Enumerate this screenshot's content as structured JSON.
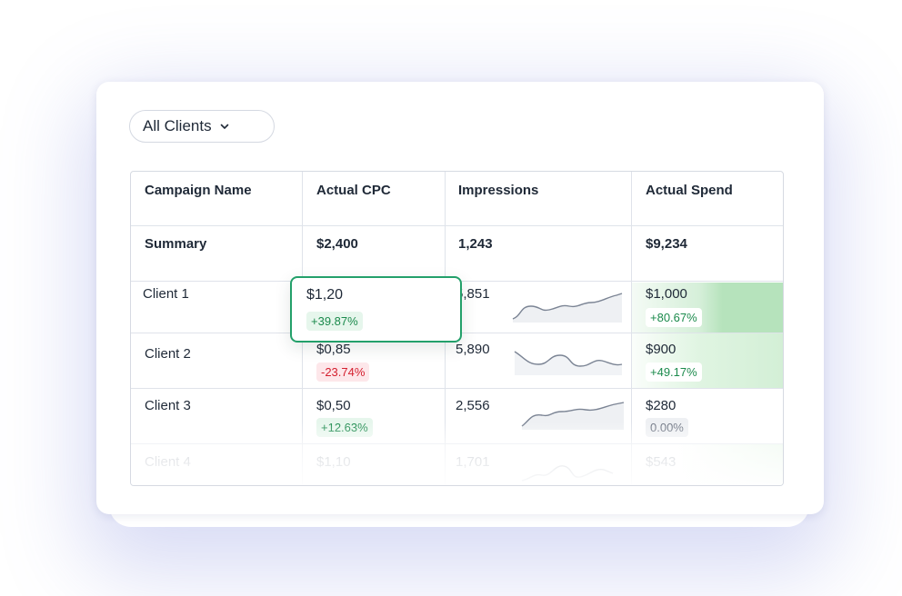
{
  "filter": {
    "label": "All Clients"
  },
  "table": {
    "headers": [
      "Campaign Name",
      "Actual CPC",
      "Impressions",
      "Actual Spend"
    ],
    "summary": {
      "name": "Summary",
      "cpc": "$2,400",
      "impressions": "1,243",
      "spend": "$9,234"
    },
    "rows": [
      {
        "name": "Client 1",
        "cpc": "$1,20",
        "cpc_change": "+39.87%",
        "impressions": "5,851",
        "spend": "$1,000",
        "spend_change": "+80.67%"
      },
      {
        "name": "Client 2",
        "cpc": "$0,85",
        "cpc_change": "-23.74%",
        "impressions": "5,890",
        "spend": "$900",
        "spend_change": "+49.17%"
      },
      {
        "name": "Client 3",
        "cpc": "$0,50",
        "cpc_change": "+12.63%",
        "impressions": "2,556",
        "spend": "$280",
        "spend_change": "0.00%"
      },
      {
        "name": "Client 4",
        "cpc": "$1,10",
        "impressions": "1,701",
        "spend": "$543"
      }
    ]
  },
  "colors": {
    "positive": "#1b8a4c",
    "negative": "#d4202f",
    "highlight_border": "#23a06a",
    "heat_green": "#b9e4bf"
  }
}
